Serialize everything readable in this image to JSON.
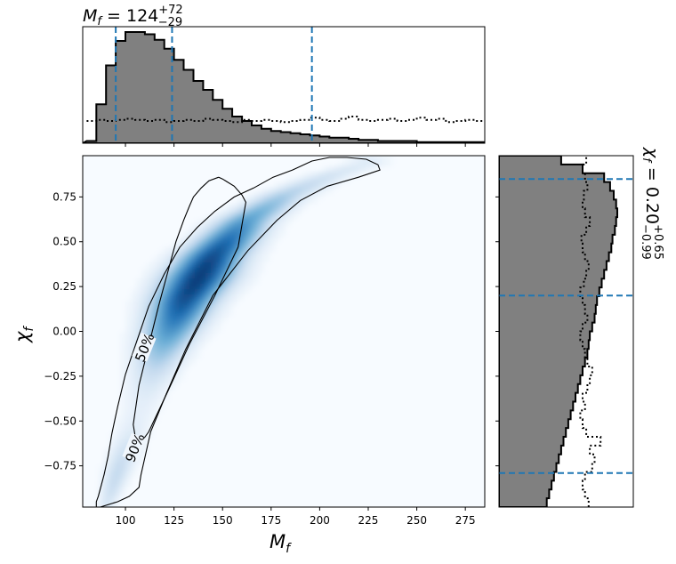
{
  "chart_data": [
    {
      "panel": "top-marginal",
      "type": "histogram",
      "title_main": "M",
      "title_sub": "f",
      "title_value": " = 124",
      "title_upper": "+72",
      "title_lower": "−29",
      "xlim": [
        78,
        285
      ],
      "bin_edges_start": 80,
      "bin_width": 5,
      "posterior_heights": [
        2,
        35,
        70,
        92,
        100,
        100,
        98,
        93,
        85,
        75,
        66,
        56,
        48,
        39,
        31,
        24,
        20,
        16,
        13,
        11,
        10,
        9,
        8,
        7,
        6,
        5,
        5,
        4,
        3,
        3,
        2,
        2,
        2,
        2,
        1,
        1,
        1,
        1,
        1,
        1,
        1
      ],
      "prior_heights": [
        20,
        21,
        20,
        21,
        22,
        21,
        20,
        21,
        19,
        20,
        21,
        20,
        22,
        21,
        20,
        19,
        21,
        20,
        21,
        20,
        19,
        20,
        21,
        23,
        21,
        20,
        22,
        24,
        21,
        20,
        21,
        22,
        20,
        21,
        23,
        21,
        22,
        19,
        20,
        21,
        20
      ],
      "quantile_lines": [
        95,
        124,
        196
      ],
      "line_style": "dashed"
    },
    {
      "panel": "right-marginal",
      "type": "histogram",
      "orientation": "horizontal",
      "title_main": "χ",
      "title_sub": "f",
      "title_value": " = 0.20",
      "title_upper": "+0.65",
      "title_lower": "−0.99",
      "ylim": [
        -0.98,
        0.98
      ],
      "bin_edges_start": -0.98,
      "bin_width": 0.049,
      "posterior_widths": [
        40,
        42,
        44,
        46,
        48,
        50,
        52,
        54,
        56,
        58,
        60,
        62,
        64,
        66,
        68,
        70,
        72,
        74,
        75,
        76,
        78,
        80,
        81,
        82,
        84,
        86,
        88,
        90,
        92,
        94,
        95,
        97,
        98,
        99,
        98,
        96,
        93,
        88,
        70,
        52
      ],
      "prior_widths": [
        75,
        72,
        70,
        72,
        78,
        80,
        76,
        85,
        73,
        70,
        68,
        72,
        70,
        74,
        76,
        78,
        74,
        72,
        70,
        68,
        70,
        74,
        72,
        70,
        68,
        71,
        73,
        75,
        72,
        70,
        69,
        73,
        76,
        72,
        70,
        71,
        74,
        72,
        70,
        73
      ],
      "quantile_lines": [
        -0.79,
        0.2,
        0.85
      ],
      "line_style": "dashed"
    },
    {
      "panel": "joint",
      "type": "heatmap",
      "xlabel_main": "M",
      "xlabel_sub": "f",
      "ylabel_main": "χ",
      "ylabel_sub": "f",
      "xlim": [
        78,
        285
      ],
      "ylim": [
        -0.98,
        0.98
      ],
      "xticks": [
        100,
        125,
        150,
        175,
        200,
        225,
        250,
        275
      ],
      "yticks": [
        -0.75,
        -0.5,
        -0.25,
        0.0,
        0.25,
        0.5,
        0.75
      ],
      "ytick_labels": [
        "−0.75",
        "−0.50",
        "−0.25",
        "0.00",
        "0.25",
        "0.50",
        "0.75"
      ],
      "colormap": [
        "#f7fbff",
        "#c6dbef",
        "#6baed6",
        "#2171b5",
        "#08306b"
      ],
      "ridge_x": [
        90,
        98,
        108,
        118,
        130,
        145,
        162,
        182,
        205,
        225
      ],
      "ridge_y": [
        -0.98,
        -0.72,
        -0.42,
        -0.12,
        0.17,
        0.42,
        0.62,
        0.76,
        0.87,
        0.94
      ],
      "contours": [
        {
          "label": "50%",
          "label_x": 110,
          "label_y": -0.09,
          "x": [
            148,
            143,
            139,
            135,
            133,
            130,
            126,
            122,
            117,
            112,
            107,
            104,
            106,
            112,
            122,
            133,
            146,
            158,
            162,
            160,
            156,
            150,
            148
          ],
          "y": [
            0.86,
            0.84,
            0.8,
            0.75,
            0.7,
            0.62,
            0.5,
            0.34,
            0.14,
            -0.08,
            -0.3,
            -0.52,
            -0.65,
            -0.56,
            -0.33,
            -0.07,
            0.2,
            0.47,
            0.72,
            0.76,
            0.81,
            0.85,
            0.86
          ]
        },
        {
          "label": "90%",
          "label_x": 105,
          "label_y": -0.65,
          "x": [
            228,
            224,
            214,
            205,
            196,
            186,
            176,
            166,
            156,
            146,
            137,
            128,
            120,
            112,
            106,
            100,
            96,
            93,
            91,
            89,
            87,
            86,
            85,
            85,
            87,
            96,
            102,
            107,
            108,
            113,
            121,
            131,
            145,
            163,
            178,
            190,
            204,
            220,
            231,
            230,
            228
          ],
          "y": [
            0.94,
            0.96,
            0.97,
            0.97,
            0.95,
            0.9,
            0.86,
            0.8,
            0.75,
            0.67,
            0.58,
            0.47,
            0.32,
            0.14,
            -0.05,
            -0.24,
            -0.42,
            -0.57,
            -0.7,
            -0.8,
            -0.88,
            -0.92,
            -0.95,
            -0.98,
            -0.98,
            -0.95,
            -0.92,
            -0.87,
            -0.8,
            -0.56,
            -0.35,
            -0.1,
            0.2,
            0.45,
            0.62,
            0.73,
            0.81,
            0.86,
            0.9,
            0.93,
            0.94
          ]
        }
      ]
    }
  ]
}
